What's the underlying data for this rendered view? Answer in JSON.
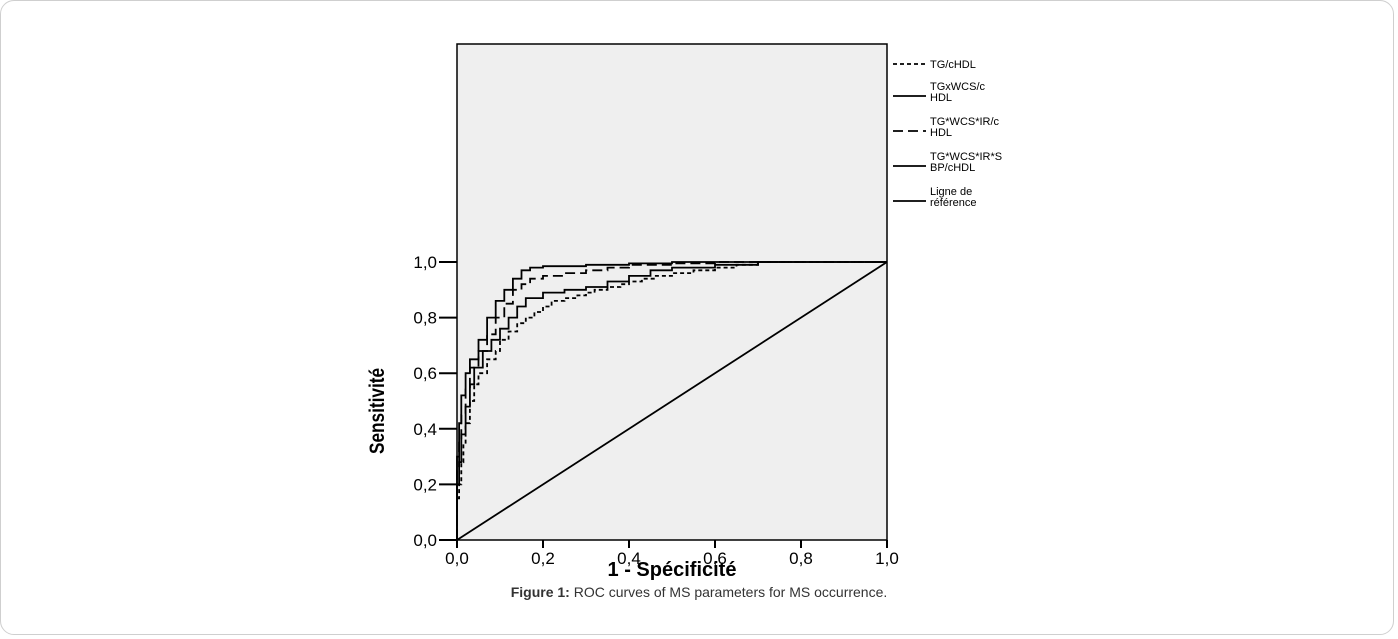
{
  "figure": {
    "caption_label": "Figure 1:",
    "caption_text": " ROC curves of MS parameters for MS occurrence."
  },
  "chart_data": {
    "type": "line",
    "xlabel": "1 - Spécificité",
    "ylabel": "Sensitivité",
    "xlim": [
      0,
      1
    ],
    "ylim": [
      0,
      1
    ],
    "xticks": [
      "0,0",
      "0,2",
      "0,4",
      "0,6",
      "0,8",
      "1,0"
    ],
    "yticks": [
      "0,0",
      "0,2",
      "0,4",
      "0,6",
      "0,8",
      "1,0"
    ],
    "grid": false,
    "plot_background": "#efefef",
    "legend_position": "right",
    "series": [
      {
        "name": "TG/cHDL",
        "dash": "short-dash",
        "x": [
          0,
          0,
          0.005,
          0.01,
          0.015,
          0.02,
          0.03,
          0.04,
          0.05,
          0.07,
          0.09,
          0.1,
          0.12,
          0.14,
          0.16,
          0.18,
          0.2,
          0.22,
          0.25,
          0.28,
          0.3,
          0.32,
          0.35,
          0.38,
          0.4,
          0.43,
          0.46,
          0.5,
          0.55,
          0.6,
          0.65,
          0.7,
          1
        ],
        "y": [
          0,
          0.15,
          0.2,
          0.28,
          0.35,
          0.42,
          0.5,
          0.56,
          0.6,
          0.65,
          0.68,
          0.72,
          0.75,
          0.78,
          0.8,
          0.82,
          0.84,
          0.86,
          0.87,
          0.88,
          0.89,
          0.9,
          0.91,
          0.92,
          0.93,
          0.94,
          0.95,
          0.96,
          0.97,
          0.98,
          0.99,
          1.0,
          1.0
        ]
      },
      {
        "name": "TGxWCS/cHDL",
        "dash": "solid",
        "x": [
          0,
          0,
          0.005,
          0.01,
          0.02,
          0.03,
          0.04,
          0.06,
          0.08,
          0.1,
          0.12,
          0.14,
          0.16,
          0.2,
          0.25,
          0.3,
          0.35,
          0.4,
          0.45,
          0.5,
          0.6,
          0.7,
          1
        ],
        "y": [
          0,
          0.2,
          0.28,
          0.38,
          0.48,
          0.56,
          0.62,
          0.68,
          0.72,
          0.76,
          0.8,
          0.84,
          0.87,
          0.89,
          0.9,
          0.91,
          0.93,
          0.95,
          0.97,
          0.98,
          0.99,
          1.0,
          1.0
        ]
      },
      {
        "name": "TG*WCS*IR/cHDL",
        "dash": "long-dash",
        "x": [
          0,
          0,
          0.005,
          0.01,
          0.02,
          0.03,
          0.05,
          0.07,
          0.09,
          0.11,
          0.13,
          0.15,
          0.17,
          0.2,
          0.25,
          0.3,
          0.35,
          0.4,
          0.5,
          0.6,
          1
        ],
        "y": [
          0,
          0.25,
          0.35,
          0.45,
          0.55,
          0.62,
          0.68,
          0.74,
          0.8,
          0.85,
          0.9,
          0.92,
          0.94,
          0.95,
          0.96,
          0.97,
          0.98,
          0.99,
          0.995,
          1.0,
          1.0
        ]
      },
      {
        "name": "TG*WCS*IR*SBP/cHDL",
        "dash": "solid",
        "x": [
          0,
          0,
          0.005,
          0.01,
          0.02,
          0.03,
          0.05,
          0.07,
          0.09,
          0.11,
          0.13,
          0.15,
          0.17,
          0.2,
          0.3,
          0.4,
          0.5,
          0.6,
          1
        ],
        "y": [
          0,
          0.3,
          0.42,
          0.52,
          0.6,
          0.65,
          0.72,
          0.8,
          0.86,
          0.9,
          0.94,
          0.97,
          0.98,
          0.985,
          0.99,
          0.995,
          1.0,
          1.0,
          1.0
        ]
      },
      {
        "name": "Ligne de référence",
        "dash": "solid",
        "x": [
          0,
          1
        ],
        "y": [
          0,
          1
        ]
      }
    ],
    "legend_labels": [
      [
        "TG/cHDL"
      ],
      [
        "TGxWCS/c",
        "HDL"
      ],
      [
        "TG*WCS*IR/c",
        "HDL"
      ],
      [
        "TG*WCS*IR*S",
        "BP/cHDL"
      ],
      [
        "Ligne de",
        "référence"
      ]
    ]
  }
}
